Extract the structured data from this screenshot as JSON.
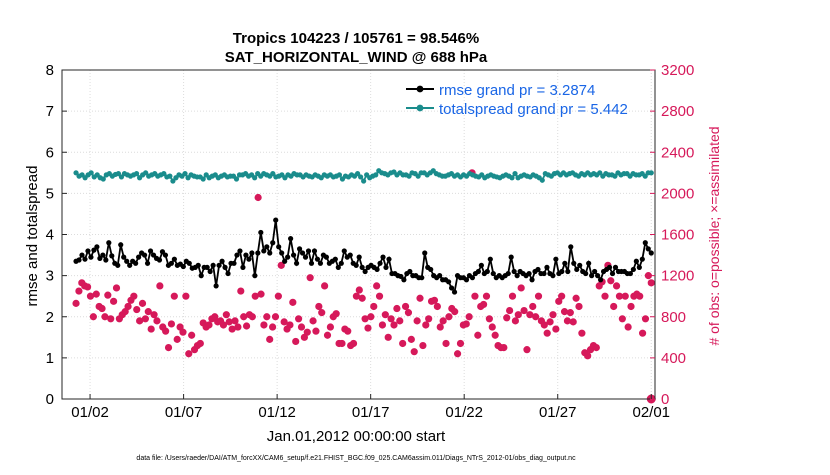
{
  "chart_data": {
    "type": "line",
    "title": "Tropics 104223 / 105761 = 98.546%",
    "subtitle": "SAT_HORIZONTAL_WIND @ 688 hPa",
    "xlabel": "Jan.01,2012 00:00:00 start",
    "ylabel": "rmse and totalspread",
    "y2label": "# of obs: o=possible; ×=assimilated",
    "footnote": "data file: /Users/raeder/DAI/ATM_forcXX/CAM6_setup/f.e21.FHIST_BGC.f09_025.CAM6assim.011/Diags_NTrS_2012-01/obs_diag_output.nc",
    "xlim": [
      0.5,
      32.2
    ],
    "ylim": [
      0,
      8
    ],
    "y2lim": [
      0,
      3200
    ],
    "x_ticks": [
      {
        "label": "01/02",
        "x": 2
      },
      {
        "label": "01/07",
        "x": 7
      },
      {
        "label": "01/12",
        "x": 12
      },
      {
        "label": "01/17",
        "x": 17
      },
      {
        "label": "01/22",
        "x": 22
      },
      {
        "label": "01/27",
        "x": 27
      },
      {
        "label": "02/01",
        "x": 32
      }
    ],
    "y_ticks": [
      "0",
      "1",
      "2",
      "3",
      "4",
      "5",
      "6",
      "7",
      "8"
    ],
    "y2_ticks": [
      "0",
      "400",
      "800",
      "1200",
      "1600",
      "2000",
      "2400",
      "2800",
      "3200"
    ],
    "legend_position": "top-right",
    "colors": {
      "rmse": "#000000",
      "spread": "#1a8c8c",
      "obs": "#d6195a",
      "legend_text": "#1a66e6"
    },
    "series": [
      {
        "name": "rmse grand pr = 3.2874",
        "axis": "left",
        "values": [
          3.35,
          3.38,
          3.5,
          3.4,
          3.6,
          3.45,
          3.62,
          3.7,
          3.42,
          3.5,
          3.38,
          3.8,
          3.48,
          3.3,
          3.25,
          3.75,
          3.45,
          3.35,
          3.25,
          3.35,
          3.3,
          3.45,
          3.55,
          3.5,
          3.3,
          3.6,
          3.5,
          3.42,
          3.38,
          3.58,
          3.5,
          3.25,
          3.3,
          3.4,
          3.25,
          3.28,
          3.22,
          3.35,
          3.3,
          3.18,
          3.2,
          3.25,
          3.0,
          3.2,
          3.2,
          3.1,
          3.25,
          2.75,
          3.25,
          3.35,
          3.2,
          3.05,
          3.3,
          3.3,
          3.5,
          3.6,
          3.2,
          3.5,
          3.4,
          3.55,
          3.0,
          3.55,
          4.05,
          3.6,
          3.7,
          3.55,
          3.8,
          4.35,
          3.7,
          3.55,
          3.35,
          3.45,
          3.9,
          3.5,
          3.3,
          3.65,
          3.55,
          3.45,
          3.6,
          3.3,
          3.6,
          3.4,
          3.3,
          3.5,
          3.45,
          3.3,
          3.35,
          3.4,
          3.2,
          3.3,
          3.6,
          3.45,
          3.5,
          3.3,
          3.25,
          3.45,
          3.2,
          3.1,
          3.2,
          3.25,
          3.2,
          3.15,
          3.3,
          3.45,
          3.2,
          3.4,
          3.05,
          3.05,
          3.0,
          2.98,
          2.9,
          3.05,
          3.1,
          3.0,
          3.0,
          2.95,
          2.95,
          3.55,
          3.2,
          3.15,
          3.0,
          2.95,
          3.0,
          2.9,
          2.9,
          2.85,
          2.7,
          2.6,
          3.0,
          2.95,
          2.95,
          2.9,
          3.0,
          2.95,
          3.05,
          3.1,
          3.25,
          3.05,
          3.1,
          3.4,
          3.05,
          2.95,
          3.0,
          2.95,
          3.0,
          3.05,
          3.45,
          3.1,
          3.0,
          3.1,
          3.05,
          3.0,
          3.05,
          2.9,
          3.1,
          3.15,
          3.05,
          3.05,
          3.2,
          3.05,
          3.0,
          3.4,
          3.05,
          3.1,
          3.3,
          3.1,
          3.7,
          3.3,
          3.15,
          3.25,
          3.1,
          3.05,
          3.3,
          3.0,
          3.1,
          3.0,
          2.9,
          3.1,
          3.15,
          3.2,
          3.05,
          3.2,
          3.1,
          3.1,
          3.1,
          3.05,
          3.05,
          3.15,
          3.35,
          3.2,
          3.4,
          3.8,
          3.65,
          3.55
        ]
      },
      {
        "name": "totalspread grand pr = 5.442",
        "axis": "left",
        "values": [
          5.5,
          5.42,
          5.45,
          5.38,
          5.45,
          5.5,
          5.4,
          5.45,
          5.38,
          5.35,
          5.45,
          5.48,
          5.42,
          5.46,
          5.48,
          5.4,
          5.48,
          5.45,
          5.42,
          5.45,
          5.48,
          5.38,
          5.45,
          5.5,
          5.42,
          5.45,
          5.48,
          5.42,
          5.45,
          5.48,
          5.4,
          5.42,
          5.3,
          5.38,
          5.45,
          5.42,
          5.48,
          5.38,
          5.45,
          5.42,
          5.4,
          5.4,
          5.35,
          5.45,
          5.38,
          5.42,
          5.45,
          5.38,
          5.42,
          5.45,
          5.4,
          5.42,
          5.42,
          5.35,
          5.45,
          5.45,
          5.48,
          5.42,
          5.45,
          5.38,
          5.48,
          5.42,
          5.48,
          5.45,
          5.42,
          5.48,
          5.4,
          5.42,
          5.45,
          5.38,
          5.45,
          5.42,
          5.48,
          5.45,
          5.45,
          5.4,
          5.45,
          5.42,
          5.4,
          5.45,
          5.42,
          5.38,
          5.45,
          5.42,
          5.45,
          5.4,
          5.42,
          5.45,
          5.35,
          5.42,
          5.4,
          5.45,
          5.42,
          5.48,
          5.4,
          5.3,
          5.45,
          5.38,
          5.42,
          5.45,
          5.55,
          5.5,
          5.48,
          5.45,
          5.5,
          5.52,
          5.45,
          5.5,
          5.45,
          5.45,
          5.42,
          5.5,
          5.48,
          5.42,
          5.5,
          5.5,
          5.45,
          5.5,
          5.55,
          5.48,
          5.45,
          5.42,
          5.42,
          5.45,
          5.48,
          5.42,
          5.45,
          5.4,
          5.45,
          5.42,
          5.48,
          5.45,
          5.42,
          5.4,
          5.45,
          5.38,
          5.42,
          5.45,
          5.42,
          5.4,
          5.38,
          5.42,
          5.45,
          5.42,
          5.38,
          5.48,
          5.38,
          5.42,
          5.45,
          5.42,
          5.4,
          5.45,
          5.42,
          5.38,
          5.32,
          5.48,
          5.45,
          5.42,
          5.48,
          5.5,
          5.45,
          5.5,
          5.45,
          5.48,
          5.5,
          5.45,
          5.42,
          5.48,
          5.45,
          5.5,
          5.45,
          5.48,
          5.45,
          5.5,
          5.42,
          5.48,
          5.45,
          5.45,
          5.42,
          5.5,
          5.45,
          5.48,
          5.48,
          5.42,
          5.48,
          5.45,
          5.45,
          5.48,
          5.42,
          5.5,
          5.5
        ]
      },
      {
        "name": "obs",
        "axis": "right",
        "values": [
          930,
          1050,
          1130,
          1100,
          1090,
          1000,
          800,
          1020,
          900,
          880,
          800,
          1010,
          780,
          950,
          1080,
          780,
          820,
          850,
          900,
          960,
          1000,
          870,
          760,
          930,
          780,
          850,
          680,
          820,
          760,
          1100,
          700,
          660,
          500,
          730,
          1000,
          580,
          700,
          650,
          1000,
          440,
          620,
          480,
          520,
          540,
          740,
          700,
          720,
          780,
          800,
          750,
          760,
          720,
          820,
          750,
          680,
          760,
          700,
          1050,
          800,
          710,
          820,
          800,
          1000,
          1960,
          1020,
          720,
          800,
          580,
          700,
          800,
          1000,
          1300,
          750,
          680,
          720,
          940,
          560,
          780,
          700,
          600,
          650,
          1180,
          760,
          660,
          900,
          840,
          1100,
          620,
          700,
          800,
          830,
          540,
          540,
          680,
          660,
          520,
          540,
          1000,
          1060,
          980,
          780,
          690,
          800,
          900,
          1100,
          1000,
          720,
          820,
          600,
          780,
          720,
          880,
          760,
          540,
          900,
          840,
          580,
          460,
          760,
          980,
          520,
          720,
          780,
          950,
          960,
          900,
          700,
          760,
          540,
          800,
          880,
          850,
          440,
          540,
          720,
          730,
          800,
          2200,
          1000,
          620,
          900,
          920,
          1000,
          780,
          700,
          620,
          520,
          500,
          500,
          790,
          860,
          1000,
          760,
          820,
          1080,
          860,
          480,
          820,
          900,
          800,
          1000,
          760,
          720,
          640,
          750,
          820,
          680,
          950,
          1000,
          850,
          760,
          840,
          750,
          980,
          900,
          640,
          450,
          420,
          480,
          520,
          500,
          1100,
          1140,
          1000,
          1300,
          1150,
          900,
          1100,
          1000,
          780,
          1000,
          700,
          900,
          1000,
          1020,
          1000,
          640,
          780,
          1200,
          1130
        ]
      }
    ]
  }
}
